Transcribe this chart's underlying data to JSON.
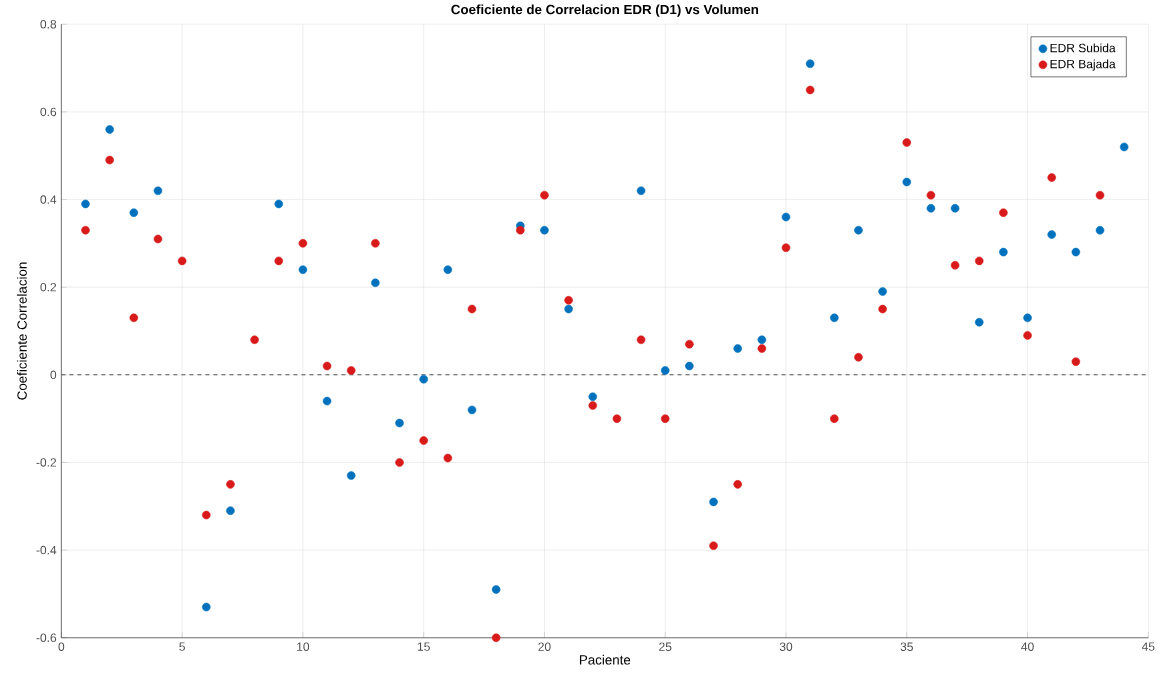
{
  "chart_data": {
    "type": "scatter",
    "title": "Coeficiente de Correlacion EDR (D1) vs Volumen",
    "xlabel": "Paciente",
    "ylabel": "Coeficiente Correlacion",
    "x": [
      1,
      2,
      3,
      4,
      5,
      6,
      7,
      8,
      9,
      10,
      11,
      12,
      13,
      14,
      15,
      16,
      17,
      18,
      19,
      20,
      21,
      22,
      23,
      24,
      25,
      26,
      27,
      28,
      29,
      30,
      31,
      32,
      33,
      34,
      35,
      36,
      37,
      38,
      39,
      40,
      41,
      42,
      43,
      44
    ],
    "series": [
      {
        "name": "EDR Subida",
        "color": "#0072bd",
        "values": [
          0.39,
          0.56,
          0.37,
          0.42,
          null,
          -0.53,
          -0.31,
          null,
          0.39,
          0.24,
          -0.06,
          -0.23,
          0.21,
          -0.11,
          -0.01,
          0.24,
          -0.08,
          -0.49,
          0.34,
          0.33,
          0.15,
          -0.05,
          null,
          0.42,
          0.01,
          0.02,
          -0.29,
          0.06,
          0.08,
          0.36,
          0.71,
          0.13,
          0.33,
          0.19,
          0.44,
          0.38,
          0.38,
          0.12,
          0.28,
          0.13,
          0.32,
          0.28,
          0.33,
          0.52
        ]
      },
      {
        "name": "EDR Bajada",
        "color": "#d91a1a",
        "values": [
          0.33,
          0.49,
          0.13,
          0.31,
          0.26,
          -0.32,
          -0.25,
          0.08,
          0.26,
          0.3,
          0.02,
          0.01,
          0.3,
          -0.2,
          -0.15,
          -0.19,
          0.15,
          -0.6,
          0.33,
          0.41,
          0.17,
          -0.07,
          -0.1,
          0.08,
          -0.1,
          0.07,
          -0.39,
          -0.25,
          0.06,
          0.29,
          0.65,
          -0.1,
          0.04,
          0.15,
          0.53,
          0.41,
          0.25,
          0.26,
          0.37,
          0.09,
          0.45,
          0.03,
          0.41,
          null
        ]
      }
    ],
    "xlim": [
      0,
      45
    ],
    "xticks": [
      0,
      5,
      10,
      15,
      20,
      25,
      30,
      35,
      40,
      45
    ],
    "ylim": [
      -0.6,
      0.8
    ],
    "yticks": [
      -0.6,
      -0.4,
      -0.2,
      0,
      0.2,
      0.4,
      0.6,
      0.8
    ],
    "ref_lines": [
      {
        "axis": "y",
        "value": 0,
        "color": "#555555",
        "line_style": "dashed"
      }
    ],
    "grid": true,
    "legend": "top right",
    "marker": "circle"
  }
}
